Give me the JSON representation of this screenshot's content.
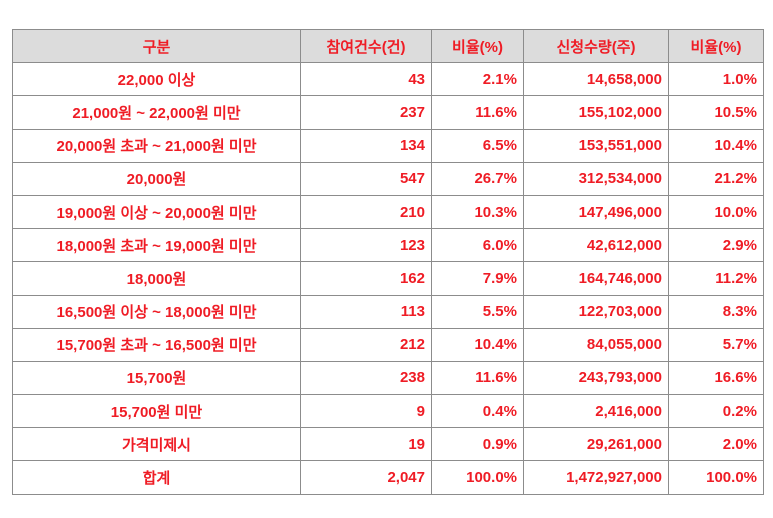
{
  "table": {
    "headers": [
      "구분",
      "참여건수(건)",
      "비율(%)",
      "신청수량(주)",
      "비율(%)"
    ],
    "rows": [
      [
        "22,000 이상",
        "43",
        "2.1%",
        "14,658,000",
        "1.0%"
      ],
      [
        "21,000원 ~ 22,000원 미만",
        "237",
        "11.6%",
        "155,102,000",
        "10.5%"
      ],
      [
        "20,000원 초과 ~ 21,000원 미만",
        "134",
        "6.5%",
        "153,551,000",
        "10.4%"
      ],
      [
        "20,000원",
        "547",
        "26.7%",
        "312,534,000",
        "21.2%"
      ],
      [
        "19,000원 이상 ~ 20,000원 미만",
        "210",
        "10.3%",
        "147,496,000",
        "10.0%"
      ],
      [
        "18,000원 초과 ~ 19,000원 미만",
        "123",
        "6.0%",
        "42,612,000",
        "2.9%"
      ],
      [
        "18,000원",
        "162",
        "7.9%",
        "164,746,000",
        "11.2%"
      ],
      [
        "16,500원 이상 ~ 18,000원 미만",
        "113",
        "5.5%",
        "122,703,000",
        "8.3%"
      ],
      [
        "15,700원 초과 ~ 16,500원 미만",
        "212",
        "10.4%",
        "84,055,000",
        "5.7%"
      ],
      [
        "15,700원",
        "238",
        "11.6%",
        "243,793,000",
        "16.6%"
      ],
      [
        "15,700원 미만",
        "9",
        "0.4%",
        "2,416,000",
        "0.2%"
      ],
      [
        "가격미제시",
        "19",
        "0.9%",
        "29,261,000",
        "2.0%"
      ],
      [
        "합계",
        "2,047",
        "100.0%",
        "1,472,927,000",
        "100.0%"
      ]
    ]
  },
  "colors": {
    "text": "#ef1c25",
    "header_bg": "#dcdcdc",
    "border": "#8c8c8c"
  }
}
